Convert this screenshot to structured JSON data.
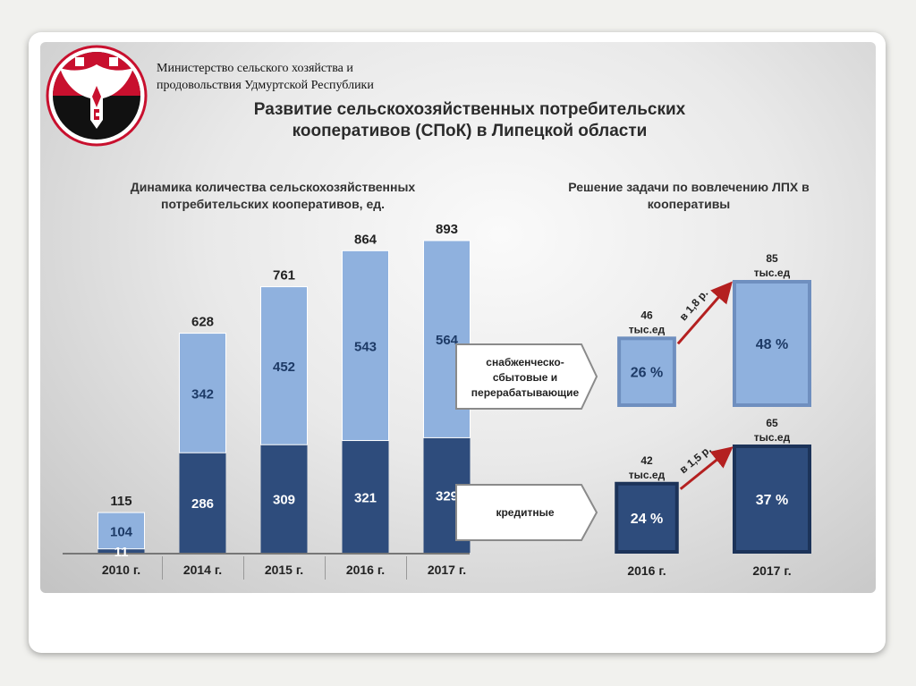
{
  "header": {
    "ministry": "Министерство сельского хозяйства и продовольствия Удмуртской Республики",
    "title": "Развитие сельскохозяйственных потребительских кооперативов (СПоК) в Липецкой области"
  },
  "left_chart": {
    "subtitle": "Динамика количества сельскохозяйственных потребительских кооперативов, ед."
  },
  "right_chart": {
    "subtitle": "Решение задачи по вовлечению ЛПХ в кооперативы"
  },
  "colors": {
    "light_blue": "#8fb1de",
    "dark_blue": "#2e4c7c",
    "arrow_red": "#b42020",
    "emblem_red": "#c8102e"
  },
  "chart_data": [
    {
      "type": "bar",
      "stacked": true,
      "categories": [
        "2010 г.",
        "2014 г.",
        "2015 г.",
        "2016 г.",
        "2017 г."
      ],
      "series": [
        {
          "values": [
            11,
            286,
            309,
            321,
            329
          ],
          "color": "#2e4c7c"
        },
        {
          "values": [
            104,
            342,
            452,
            543,
            564
          ],
          "color": "#8fb1de"
        }
      ],
      "totals": [
        "115",
        "628",
        "761",
        "864",
        "893"
      ],
      "ylim": [
        0,
        893
      ]
    },
    {
      "type": "bar",
      "categories": [
        "2016 г.",
        "2017 г."
      ],
      "groups": [
        {
          "name": "снабженческо-сбытовые и перерабатывающие",
          "values": [
            46,
            85
          ],
          "value_labels": [
            "46",
            "85"
          ],
          "unit": "тыс.ед",
          "shares": [
            "26 %",
            "48 %"
          ],
          "growth": "в 1,8 р.",
          "color": "#8fb1de"
        },
        {
          "name": "кредитные",
          "values": [
            42,
            65
          ],
          "value_labels": [
            "42",
            "65"
          ],
          "unit": "тыс.ед",
          "shares": [
            "24 %",
            "37 %"
          ],
          "growth": "в 1,5 р.",
          "color": "#2e4c7c"
        }
      ]
    }
  ]
}
